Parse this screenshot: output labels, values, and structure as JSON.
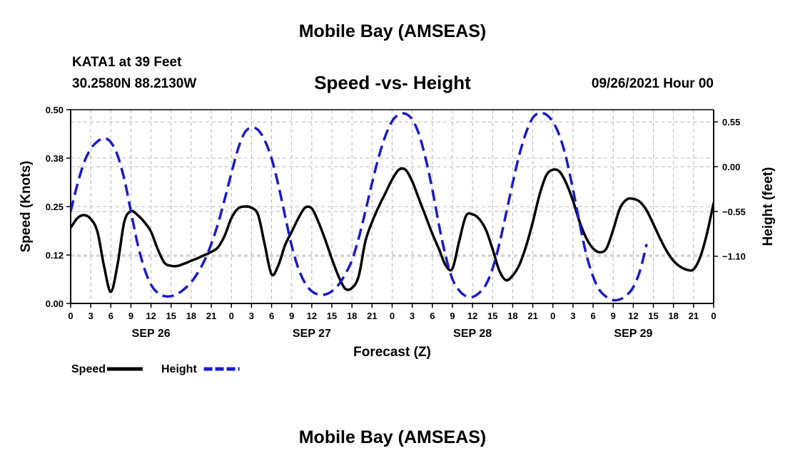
{
  "header": {
    "title": "Mobile Bay (AMSEAS)",
    "station": "KATA1 at 39 Feet",
    "coords": "30.2580N  88.2130W",
    "chart_title": "Speed -vs- Height",
    "forecast_time": "09/26/2021 Hour 00"
  },
  "footer": {
    "title": "Mobile Bay (AMSEAS)"
  },
  "colors": {
    "speed": "#000000",
    "height": "#1a1acc",
    "grid": "#b4b4b4"
  },
  "chart_data": {
    "type": "line",
    "title": "Speed -vs- Height",
    "xlabel": "Forecast (Z)",
    "ylabel": "Speed (Knots)",
    "y2label": "Height (feet)",
    "x_tick_labels": [
      "0",
      "3",
      "6",
      "9",
      "12",
      "15",
      "18",
      "21",
      "0",
      "3",
      "6",
      "9",
      "12",
      "15",
      "18",
      "21",
      "0",
      "3",
      "6",
      "9",
      "12",
      "15",
      "18",
      "21",
      "0",
      "3",
      "6",
      "9",
      "12",
      "15",
      "18",
      "21",
      "0"
    ],
    "day_labels": [
      {
        "label": "SEP 26",
        "hour": 12
      },
      {
        "label": "SEP 27",
        "hour": 36
      },
      {
        "label": "SEP 28",
        "hour": 60
      },
      {
        "label": "SEP 29",
        "hour": 84
      }
    ],
    "xlim": [
      0,
      96
    ],
    "ylim": [
      0,
      0.5
    ],
    "y_ticks": [
      0,
      0.125,
      0.25,
      0.375,
      0.5
    ],
    "y_tick_labels": [
      "0.00",
      "0.12",
      "0.25",
      "0.38",
      "0.50"
    ],
    "y2lim": [
      -1.68,
      0.7
    ],
    "y2_ticks": [
      -1.1,
      -0.55,
      0,
      0.55
    ],
    "y2_tick_labels": [
      "−1.10",
      "−0.55",
      "0.00",
      "0.55"
    ],
    "grid": true,
    "legend": [
      {
        "label": "Speed",
        "key": "speed",
        "dash": "solid"
      },
      {
        "label": "Height",
        "key": "height",
        "dash": "dashed"
      }
    ],
    "series": [
      {
        "name": "Speed",
        "axis": "left",
        "key": "speed",
        "points": [
          [
            0,
            0.195
          ],
          [
            1,
            0.22
          ],
          [
            2,
            0.228
          ],
          [
            3,
            0.218
          ],
          [
            4,
            0.185
          ],
          [
            5,
            0.095
          ],
          [
            6,
            0.03
          ],
          [
            7,
            0.1
          ],
          [
            8,
            0.21
          ],
          [
            9,
            0.238
          ],
          [
            10,
            0.228
          ],
          [
            11,
            0.21
          ],
          [
            12,
            0.185
          ],
          [
            13,
            0.14
          ],
          [
            14,
            0.105
          ],
          [
            15,
            0.097
          ],
          [
            16,
            0.097
          ],
          [
            17,
            0.103
          ],
          [
            18,
            0.11
          ],
          [
            19,
            0.117
          ],
          [
            20,
            0.125
          ],
          [
            21,
            0.133
          ],
          [
            22,
            0.145
          ],
          [
            23,
            0.175
          ],
          [
            24,
            0.22
          ],
          [
            25,
            0.245
          ],
          [
            26,
            0.25
          ],
          [
            27,
            0.247
          ],
          [
            28,
            0.228
          ],
          [
            29,
            0.15
          ],
          [
            30,
            0.075
          ],
          [
            31,
            0.098
          ],
          [
            32,
            0.15
          ],
          [
            33,
            0.185
          ],
          [
            34,
            0.22
          ],
          [
            35,
            0.247
          ],
          [
            36,
            0.245
          ],
          [
            37,
            0.21
          ],
          [
            38,
            0.165
          ],
          [
            39,
            0.115
          ],
          [
            40,
            0.07
          ],
          [
            41,
            0.038
          ],
          [
            42,
            0.04
          ],
          [
            43,
            0.07
          ],
          [
            44,
            0.16
          ],
          [
            45,
            0.21
          ],
          [
            46,
            0.25
          ],
          [
            47,
            0.285
          ],
          [
            48,
            0.32
          ],
          [
            49,
            0.345
          ],
          [
            50,
            0.345
          ],
          [
            51,
            0.315
          ],
          [
            52,
            0.27
          ],
          [
            53,
            0.225
          ],
          [
            54,
            0.18
          ],
          [
            55,
            0.14
          ],
          [
            56,
            0.098
          ],
          [
            57,
            0.09
          ],
          [
            58,
            0.16
          ],
          [
            59,
            0.225
          ],
          [
            60,
            0.23
          ],
          [
            61,
            0.218
          ],
          [
            62,
            0.19
          ],
          [
            63,
            0.14
          ],
          [
            64,
            0.085
          ],
          [
            65,
            0.06
          ],
          [
            66,
            0.072
          ],
          [
            67,
            0.1
          ],
          [
            68,
            0.148
          ],
          [
            69,
            0.21
          ],
          [
            70,
            0.28
          ],
          [
            71,
            0.33
          ],
          [
            72,
            0.345
          ],
          [
            73,
            0.34
          ],
          [
            74,
            0.31
          ],
          [
            75,
            0.265
          ],
          [
            76,
            0.21
          ],
          [
            77,
            0.168
          ],
          [
            78,
            0.142
          ],
          [
            79,
            0.132
          ],
          [
            80,
            0.142
          ],
          [
            81,
            0.19
          ],
          [
            82,
            0.245
          ],
          [
            83,
            0.268
          ],
          [
            84,
            0.27
          ],
          [
            85,
            0.262
          ],
          [
            86,
            0.24
          ],
          [
            87,
            0.205
          ],
          [
            88,
            0.168
          ],
          [
            89,
            0.135
          ],
          [
            90,
            0.11
          ],
          [
            91,
            0.095
          ],
          [
            92,
            0.087
          ],
          [
            93,
            0.088
          ],
          [
            94,
            0.12
          ],
          [
            95,
            0.18
          ],
          [
            96,
            0.26
          ]
        ]
      },
      {
        "name": "Height",
        "axis": "right",
        "key": "height",
        "points": [
          [
            0,
            -0.55
          ],
          [
            1,
            -0.22
          ],
          [
            2,
            0.05
          ],
          [
            3,
            0.22
          ],
          [
            4,
            0.31
          ],
          [
            5,
            0.35
          ],
          [
            6,
            0.3
          ],
          [
            7,
            0.14
          ],
          [
            8,
            -0.15
          ],
          [
            9,
            -0.55
          ],
          [
            10,
            -0.95
          ],
          [
            11,
            -1.25
          ],
          [
            12,
            -1.45
          ],
          [
            13,
            -1.55
          ],
          [
            14,
            -1.59
          ],
          [
            15,
            -1.59
          ],
          [
            16,
            -1.56
          ],
          [
            17,
            -1.5
          ],
          [
            18,
            -1.42
          ],
          [
            19,
            -1.3
          ],
          [
            20,
            -1.15
          ],
          [
            21,
            -0.95
          ],
          [
            22,
            -0.7
          ],
          [
            23,
            -0.4
          ],
          [
            24,
            -0.08
          ],
          [
            25,
            0.22
          ],
          [
            26,
            0.42
          ],
          [
            27,
            0.48
          ],
          [
            28,
            0.45
          ],
          [
            29,
            0.32
          ],
          [
            30,
            0.1
          ],
          [
            31,
            -0.22
          ],
          [
            32,
            -0.6
          ],
          [
            33,
            -0.97
          ],
          [
            34,
            -1.25
          ],
          [
            35,
            -1.43
          ],
          [
            36,
            -1.53
          ],
          [
            37,
            -1.57
          ],
          [
            38,
            -1.57
          ],
          [
            39,
            -1.53
          ],
          [
            40,
            -1.45
          ],
          [
            41,
            -1.32
          ],
          [
            42,
            -1.15
          ],
          [
            43,
            -0.88
          ],
          [
            44,
            -0.55
          ],
          [
            45,
            -0.2
          ],
          [
            46,
            0.12
          ],
          [
            47,
            0.38
          ],
          [
            48,
            0.56
          ],
          [
            49,
            0.64
          ],
          [
            50,
            0.65
          ],
          [
            51,
            0.58
          ],
          [
            52,
            0.4
          ],
          [
            53,
            0.1
          ],
          [
            54,
            -0.28
          ],
          [
            55,
            -0.72
          ],
          [
            56,
            -1.1
          ],
          [
            57,
            -1.38
          ],
          [
            58,
            -1.52
          ],
          [
            59,
            -1.59
          ],
          [
            60,
            -1.6
          ],
          [
            61,
            -1.55
          ],
          [
            62,
            -1.45
          ],
          [
            63,
            -1.25
          ],
          [
            64,
            -0.95
          ],
          [
            65,
            -0.58
          ],
          [
            66,
            -0.2
          ],
          [
            67,
            0.15
          ],
          [
            68,
            0.42
          ],
          [
            69,
            0.6
          ],
          [
            70,
            0.66
          ],
          [
            71,
            0.64
          ],
          [
            72,
            0.55
          ],
          [
            73,
            0.38
          ],
          [
            74,
            0.1
          ],
          [
            75,
            -0.28
          ],
          [
            76,
            -0.7
          ],
          [
            77,
            -1.08
          ],
          [
            78,
            -1.35
          ],
          [
            79,
            -1.52
          ],
          [
            80,
            -1.6
          ],
          [
            81,
            -1.64
          ],
          [
            82,
            -1.63
          ],
          [
            83,
            -1.58
          ],
          [
            84,
            -1.48
          ],
          [
            85,
            -1.28
          ],
          [
            86,
            -0.95
          ]
        ]
      }
    ]
  }
}
